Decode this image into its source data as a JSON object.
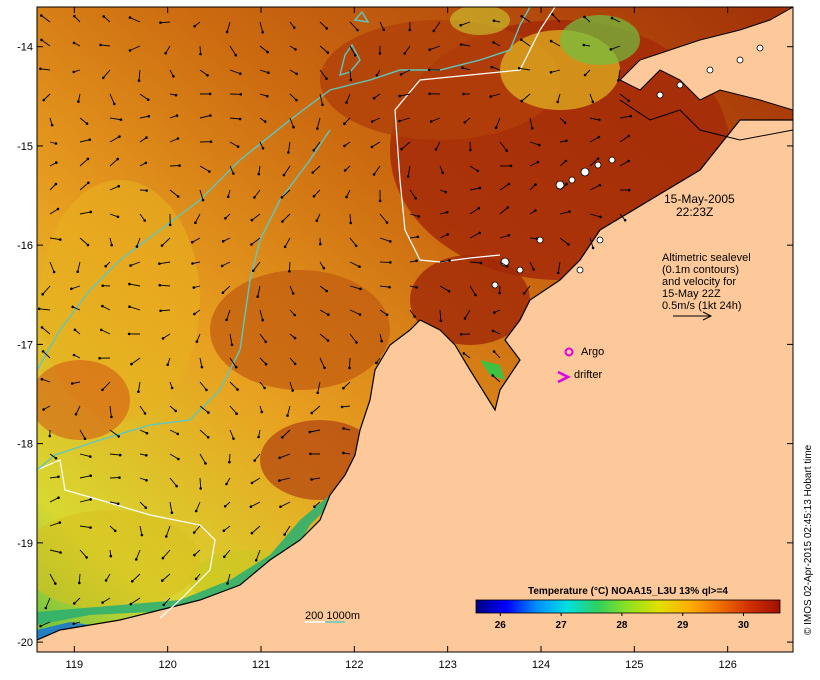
{
  "map": {
    "lon_range": [
      118.6,
      126.7
    ],
    "lat_range": [
      -20.1,
      -13.6
    ],
    "lon_ticks": [
      119,
      120,
      121,
      122,
      123,
      124,
      125,
      126
    ],
    "lat_ticks": [
      -14,
      -15,
      -16,
      -17,
      -18,
      -19,
      -20
    ],
    "tick_labels_x": [
      "119",
      "120",
      "121",
      "122",
      "123",
      "124",
      "125",
      "126"
    ],
    "tick_labels_y": [
      "-14",
      "-15",
      "-16",
      "-17",
      "-18",
      "-19",
      "-20"
    ],
    "colors": {
      "land": "#fdc99a",
      "coast": "#000000",
      "contour_200m": "#ffffff",
      "contour_1000m": "#5cc8c0",
      "argo": "#e000e0",
      "drifter": "#e000e0"
    }
  },
  "annotations": {
    "date": "15-May-2005",
    "time": "22:23Z",
    "alt_line1": "Altimetric sealevel",
    "alt_line2": "(0.1m contours)",
    "alt_line3": "and velocity for",
    "alt_line4": "15-May 22Z",
    "alt_line5": "0.5m/s (1kt 24h)",
    "argo_label": "Argo",
    "drifter_label": "drifter",
    "depth_label": "200  1000m"
  },
  "colorbar": {
    "title": "Temperature (°C) NOAA15_L3U 13% ql>=4",
    "min": 25.6,
    "max": 30.6,
    "ticks": [
      26,
      27,
      28,
      29,
      30
    ],
    "tick_labels": [
      "26",
      "27",
      "28",
      "29",
      "30"
    ],
    "stops": [
      "#000080",
      "#0000ff",
      "#0090ff",
      "#00e0e0",
      "#30d060",
      "#90e020",
      "#e0e000",
      "#ffb000",
      "#f07000",
      "#d03000",
      "#a01000"
    ]
  },
  "copyright": "© IMOS 02-Apr-2015 02:45:13 Hobart time"
}
